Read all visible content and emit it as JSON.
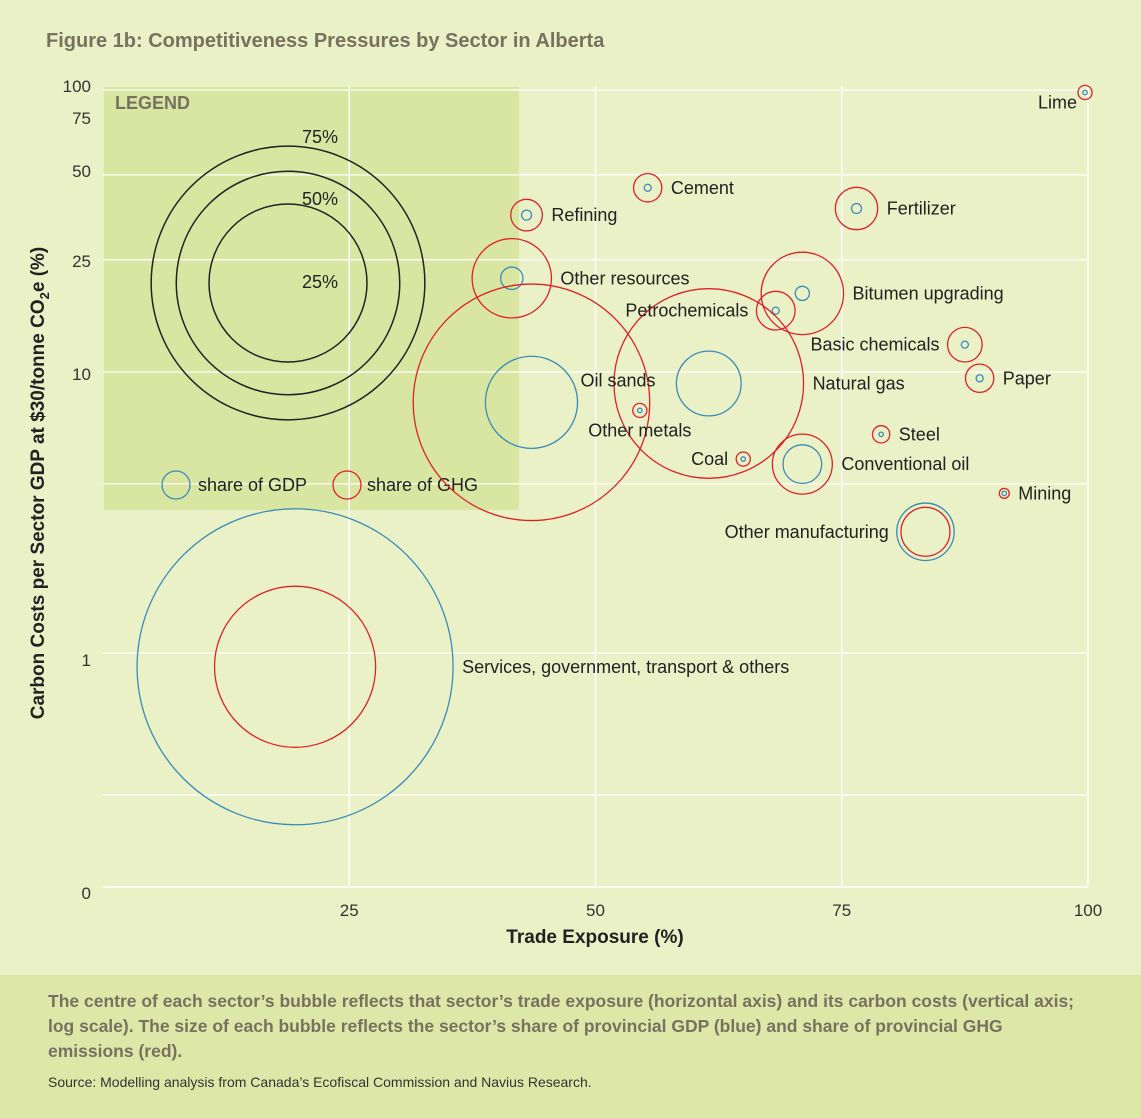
{
  "title": "Figure 1b: Competitiveness Pressures by Sector in Alberta",
  "chart_data": {
    "type": "scatter",
    "title": "Figure 1b: Competitiveness Pressures by Sector in Alberta",
    "xlabel": "Trade Exposure (%)",
    "ylabel_main": "Carbon Costs per Sector GDP at $30/tonne CO",
    "ylabel_sub": "2",
    "ylabel_end": "e (%)",
    "xlim": [
      0,
      100
    ],
    "x_ticks": [
      25,
      50,
      75,
      100
    ],
    "y_ticks": [
      {
        "value": 100,
        "label": "100"
      },
      {
        "value": 75,
        "label": "75"
      },
      {
        "value": 50,
        "label": "50"
      },
      {
        "value": 25,
        "label": "25"
      },
      {
        "value": 10,
        "label": "10"
      },
      {
        "value": 1,
        "label": "1"
      },
      {
        "value": 0,
        "label": "0"
      }
    ],
    "y_scale": "log",
    "series": [
      {
        "name": "share of GDP",
        "color": "#3a8bb8"
      },
      {
        "name": "share of GHG",
        "color": "#e0202a"
      }
    ],
    "points": [
      {
        "name": "Lime",
        "x": 99.7,
        "y": 98,
        "gdp": 0.02,
        "ghg": 0.2,
        "label_pos": "left-below"
      },
      {
        "name": "Cement",
        "x": 55.3,
        "y": 45,
        "gdp": 0.05,
        "ghg": 0.8,
        "label_pos": "right"
      },
      {
        "name": "Fertilizer",
        "x": 76.5,
        "y": 38,
        "gdp": 0.1,
        "ghg": 1.8,
        "label_pos": "right"
      },
      {
        "name": "Refining",
        "x": 43,
        "y": 36,
        "gdp": 0.1,
        "ghg": 1.0,
        "label_pos": "right"
      },
      {
        "name": "Other resources",
        "x": 41.5,
        "y": 21.5,
        "gdp": 0.5,
        "ghg": 6.3,
        "label_pos": "right"
      },
      {
        "name": "Bitumen upgrading",
        "x": 71,
        "y": 19,
        "gdp": 0.2,
        "ghg": 6.8,
        "label_pos": "right"
      },
      {
        "name": "Petrochemicals",
        "x": 68.3,
        "y": 16.5,
        "gdp": 0.05,
        "ghg": 1.5,
        "label_pos": "left"
      },
      {
        "name": "Basic chemicals",
        "x": 87.5,
        "y": 12.5,
        "gdp": 0.05,
        "ghg": 1.2,
        "label_pos": "left"
      },
      {
        "name": "Oil sands",
        "x": 43.5,
        "y": 7.8,
        "gdp": 8.5,
        "ghg": 56,
        "label_pos": "right-above"
      },
      {
        "name": "Natural gas",
        "x": 61.5,
        "y": 9.1,
        "gdp": 4.2,
        "ghg": 36,
        "label_pos": "right"
      },
      {
        "name": "Paper",
        "x": 89,
        "y": 9.5,
        "gdp": 0.05,
        "ghg": 0.8,
        "label_pos": "right"
      },
      {
        "name": "Other metals",
        "x": 54.5,
        "y": 7.3,
        "gdp": 0.02,
        "ghg": 0.2,
        "label_pos": "below"
      },
      {
        "name": "Steel",
        "x": 79,
        "y": 6,
        "gdp": 0.02,
        "ghg": 0.3,
        "label_pos": "right"
      },
      {
        "name": "Coal",
        "x": 65,
        "y": 4.9,
        "gdp": 0.02,
        "ghg": 0.2,
        "label_pos": "left"
      },
      {
        "name": "Conventional  oil",
        "x": 71,
        "y": 4.7,
        "gdp": 1.5,
        "ghg": 3.6,
        "label_pos": "right"
      },
      {
        "name": "Mining",
        "x": 91.5,
        "y": 3.7,
        "gdp": 0.02,
        "ghg": 0.1,
        "label_pos": "right"
      },
      {
        "name": "Other manufacturing",
        "x": 83.5,
        "y": 2.7,
        "gdp": 3.3,
        "ghg": 2.4,
        "label_pos": "left"
      },
      {
        "name": "Services, government, transport & others",
        "x": 19.5,
        "y": 0.8,
        "gdp": 100,
        "ghg": 26,
        "label_pos": "right"
      }
    ],
    "legend": {
      "title": "LEGEND",
      "rings": [
        {
          "label": "75%",
          "value": 75
        },
        {
          "label": "50%",
          "value": 50
        },
        {
          "label": "25%",
          "value": 25
        }
      ],
      "gdp_label": "share of GDP",
      "ghg_label": "share of GHG"
    }
  },
  "footer": {
    "description": "The centre of each sector’s bubble reflects that sector’s trade exposure (horizontal axis) and its carbon costs (vertical axis; log scale). The size of each bubble reflects the sector’s share of provincial GDP (blue) and share of provincial GHG emissions (red).",
    "source": "Source: Modelling analysis from Canada’s Ecofiscal Commission and Navius Research."
  }
}
